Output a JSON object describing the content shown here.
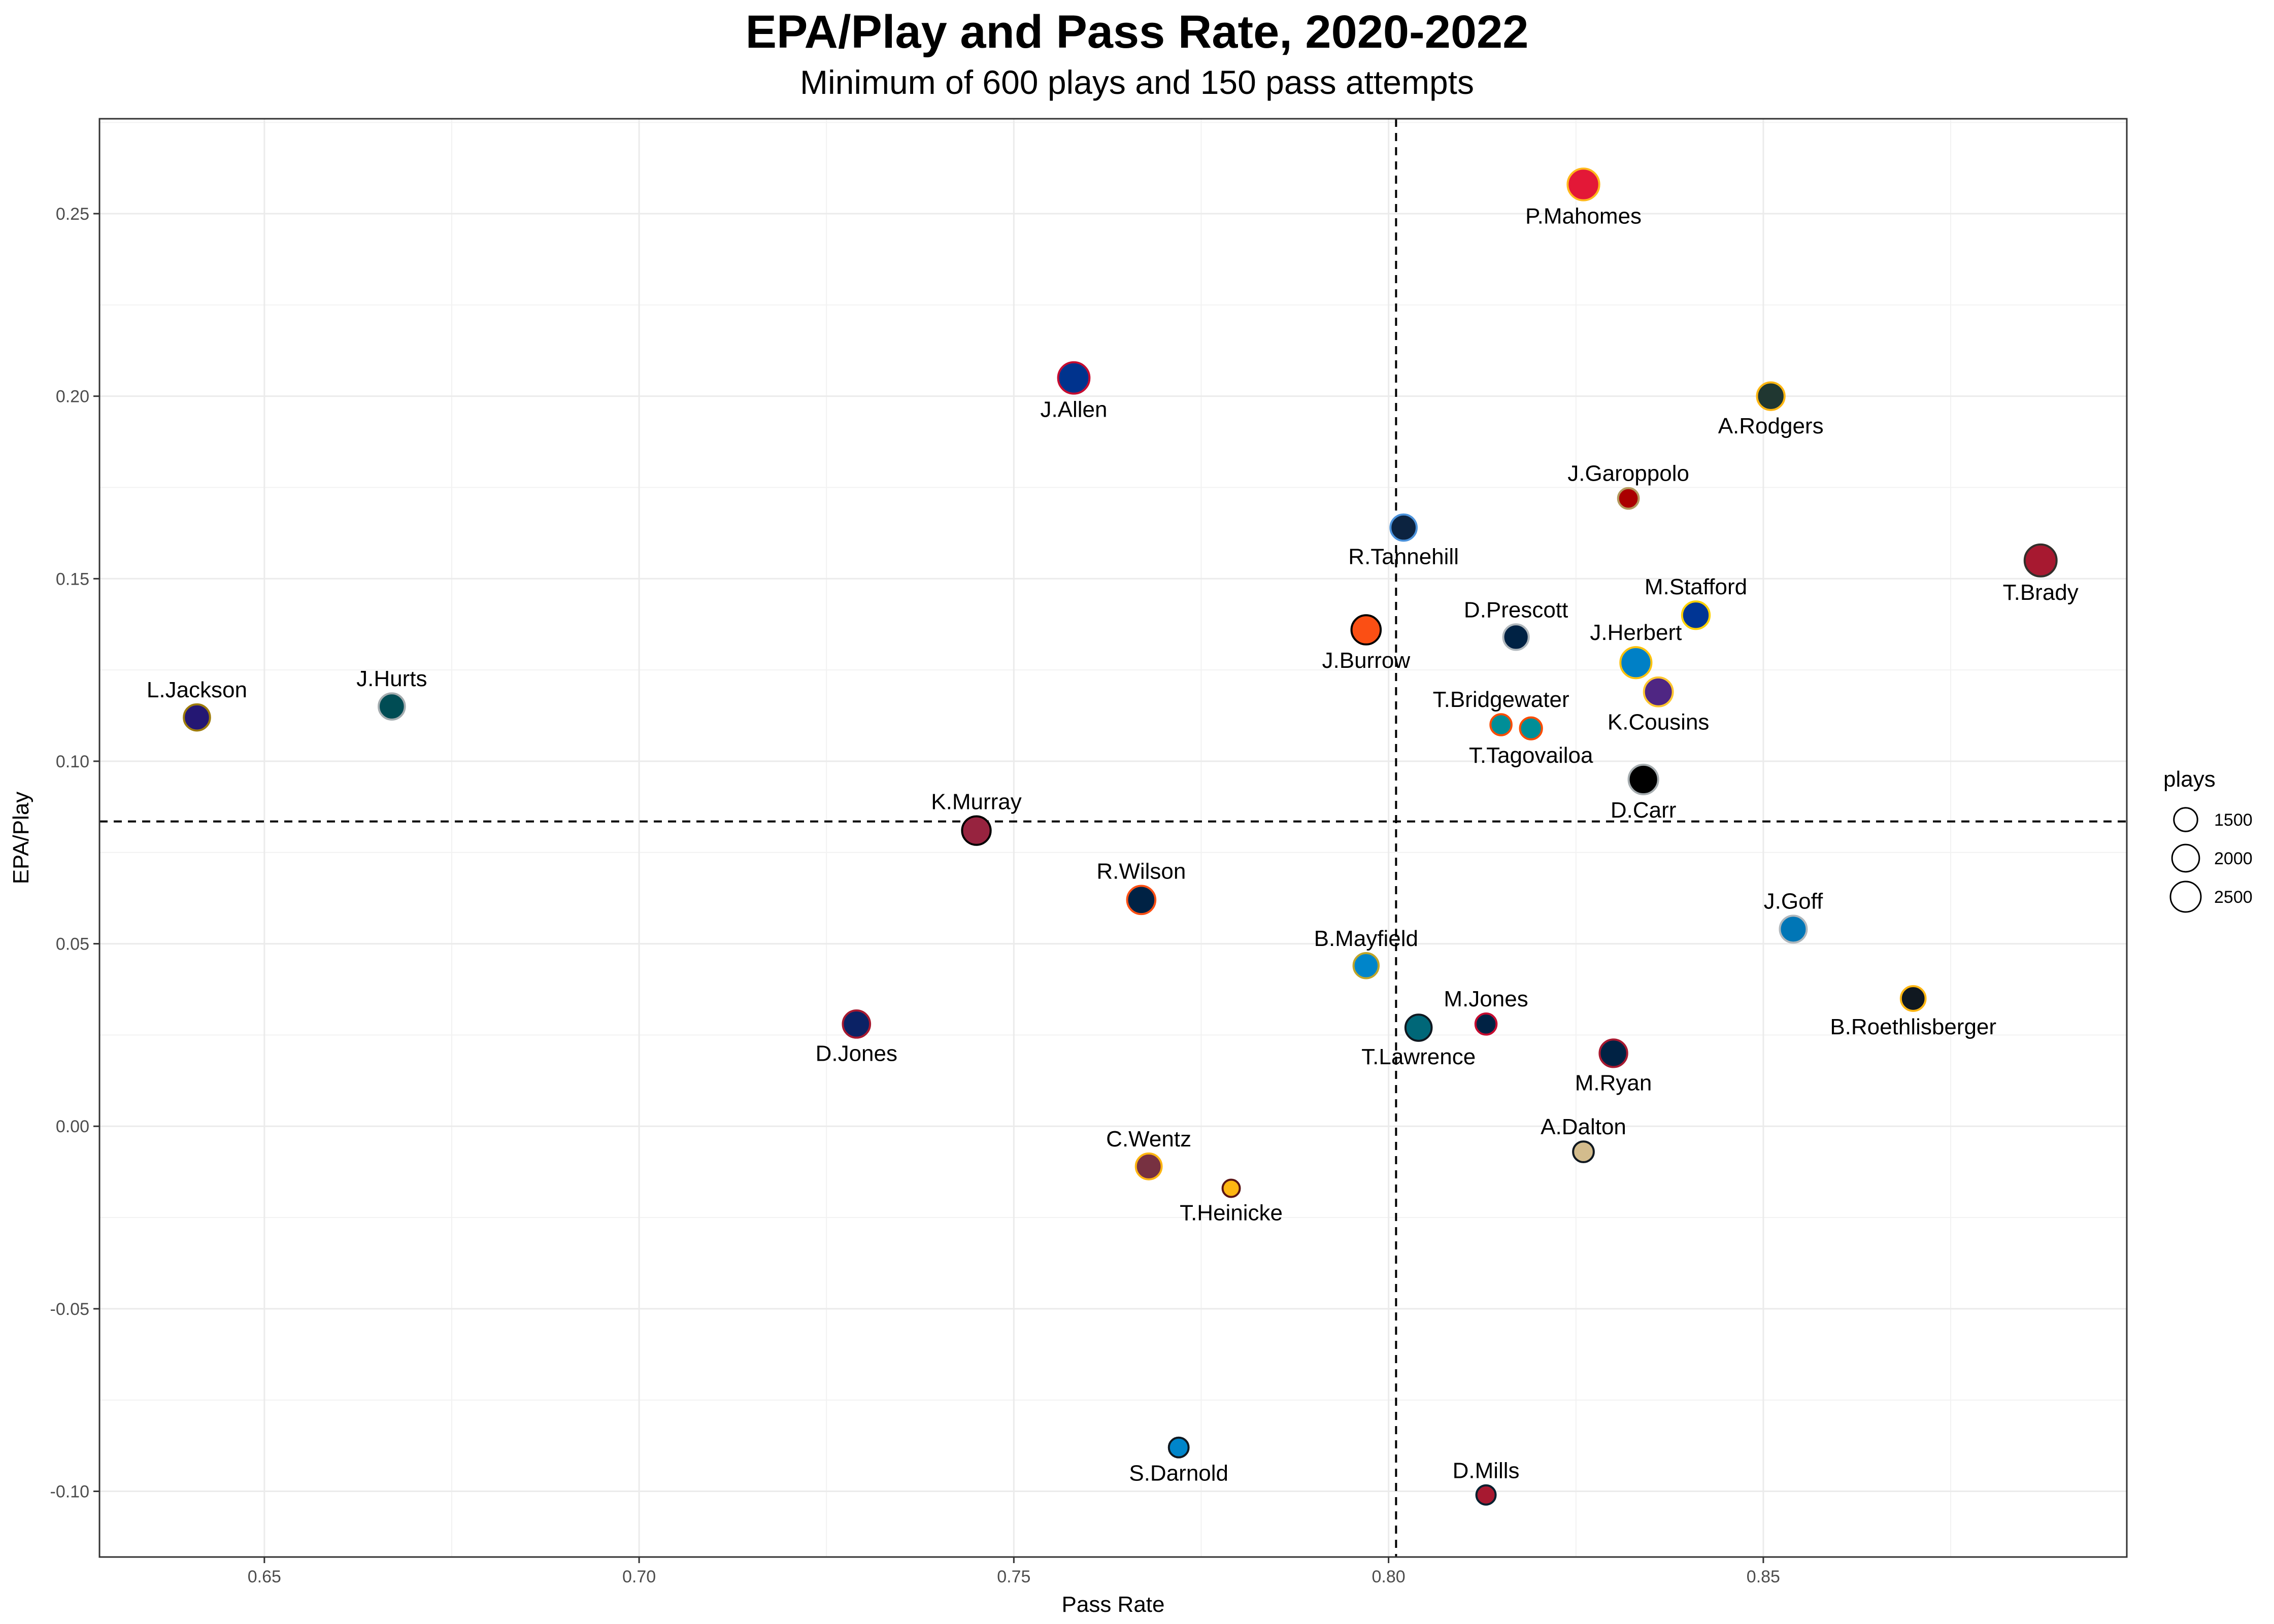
{
  "chart_data": {
    "type": "scatter",
    "title": "EPA/Play and Pass Rate, 2020-2022",
    "subtitle": "Minimum of 600 plays and 150 pass attempts",
    "xlabel": "Pass Rate",
    "ylabel": "EPA/Play",
    "xlim": [
      0.628,
      0.8985
    ],
    "ylim": [
      -0.118,
      0.276
    ],
    "x_ticks": [
      0.65,
      0.7,
      0.75,
      0.8,
      0.85
    ],
    "x_tick_labels": [
      "0.65",
      "0.70",
      "0.75",
      "0.80",
      "0.85"
    ],
    "y_ticks": [
      -0.1,
      -0.05,
      0.0,
      0.05,
      0.1,
      0.15,
      0.2,
      0.25
    ],
    "y_tick_labels": [
      "-0.10",
      "-0.05",
      "0.00",
      "0.05",
      "0.10",
      "0.15",
      "0.20",
      "0.25"
    ],
    "grid": true,
    "reference_lines": {
      "x": 0.801,
      "y": 0.0835
    },
    "legend": {
      "title": "plays",
      "position": "right",
      "sizes": [
        1500,
        2000,
        2500
      ],
      "labels": [
        "1500",
        "2000",
        "2500"
      ]
    },
    "points": [
      {
        "name": "P.Mahomes",
        "x": 0.826,
        "y": 0.258,
        "plays": 2700,
        "fill": "#E31837",
        "stroke": "#FFB81C",
        "label_pos": "below"
      },
      {
        "name": "J.Allen",
        "x": 0.758,
        "y": 0.205,
        "plays": 2650,
        "fill": "#00338D",
        "stroke": "#C60C30",
        "label_pos": "below"
      },
      {
        "name": "A.Rodgers",
        "x": 0.851,
        "y": 0.2,
        "plays": 2050,
        "fill": "#203731",
        "stroke": "#FFB612",
        "label_pos": "below"
      },
      {
        "name": "J.Garoppolo",
        "x": 0.832,
        "y": 0.172,
        "plays": 1150,
        "fill": "#AA0000",
        "stroke": "#B3995D",
        "label_pos": "above"
      },
      {
        "name": "R.Tannehill",
        "x": 0.802,
        "y": 0.164,
        "plays": 1850,
        "fill": "#0C2340",
        "stroke": "#4B92DB",
        "label_pos": "below"
      },
      {
        "name": "T.Brady",
        "x": 0.887,
        "y": 0.155,
        "plays": 2750,
        "fill": "#A71930",
        "stroke": "#322F2B",
        "label_pos": "below"
      },
      {
        "name": "M.Stafford",
        "x": 0.841,
        "y": 0.14,
        "plays": 2050,
        "fill": "#003594",
        "stroke": "#FFD100",
        "label_pos": "above"
      },
      {
        "name": "J.Burrow",
        "x": 0.797,
        "y": 0.136,
        "plays": 2300,
        "fill": "#FB4F14",
        "stroke": "#000000",
        "label_pos": "below"
      },
      {
        "name": "D.Prescott",
        "x": 0.817,
        "y": 0.134,
        "plays": 1750,
        "fill": "#002244",
        "stroke": "#B0B7BC",
        "label_pos": "above"
      },
      {
        "name": "J.Herbert",
        "x": 0.833,
        "y": 0.127,
        "plays": 2600,
        "fill": "#0080C6",
        "stroke": "#FFC20E",
        "label_pos": "above"
      },
      {
        "name": "K.Cousins",
        "x": 0.836,
        "y": 0.119,
        "plays": 2250,
        "fill": "#4F2683",
        "stroke": "#FFC62F",
        "label_pos": "below"
      },
      {
        "name": "L.Jackson",
        "x": 0.641,
        "y": 0.112,
        "plays": 1850,
        "fill": "#241773",
        "stroke": "#9E7C0C",
        "label_pos": "above"
      },
      {
        "name": "J.Hurts",
        "x": 0.667,
        "y": 0.115,
        "plays": 1850,
        "fill": "#004C54",
        "stroke": "#A5ACAF",
        "label_pos": "above"
      },
      {
        "name": "T.Bridgewater",
        "x": 0.815,
        "y": 0.11,
        "plays": 1200,
        "fill": "#008E97",
        "stroke": "#FC4C02",
        "label_pos": "above"
      },
      {
        "name": "T.Tagovailoa",
        "x": 0.819,
        "y": 0.109,
        "plays": 1300,
        "fill": "#008E97",
        "stroke": "#FC4C02",
        "label_pos": "below"
      },
      {
        "name": "D.Carr",
        "x": 0.834,
        "y": 0.095,
        "plays": 2350,
        "fill": "#000000",
        "stroke": "#A5ACAF",
        "label_pos": "below"
      },
      {
        "name": "K.Murray",
        "x": 0.745,
        "y": 0.081,
        "plays": 2200,
        "fill": "#97233F",
        "stroke": "#000000",
        "label_pos": "above"
      },
      {
        "name": "R.Wilson",
        "x": 0.767,
        "y": 0.062,
        "plays": 2150,
        "fill": "#002244",
        "stroke": "#FB4F14",
        "label_pos": "above"
      },
      {
        "name": "J.Goff",
        "x": 0.854,
        "y": 0.054,
        "plays": 1950,
        "fill": "#0076B6",
        "stroke": "#B0B7BC",
        "label_pos": "above"
      },
      {
        "name": "B.Mayfield",
        "x": 0.797,
        "y": 0.044,
        "plays": 1700,
        "fill": "#0085CA",
        "stroke": "#BFA52A",
        "label_pos": "above"
      },
      {
        "name": "B.Roethlisberger",
        "x": 0.87,
        "y": 0.035,
        "plays": 1650,
        "fill": "#101820",
        "stroke": "#FFB612",
        "label_pos": "below"
      },
      {
        "name": "D.Jones",
        "x": 0.729,
        "y": 0.028,
        "plays": 2000,
        "fill": "#0B2265",
        "stroke": "#A71930",
        "label_pos": "below"
      },
      {
        "name": "T.Lawrence",
        "x": 0.804,
        "y": 0.027,
        "plays": 1850,
        "fill": "#006778",
        "stroke": "#101820",
        "label_pos": "below"
      },
      {
        "name": "M.Jones",
        "x": 0.813,
        "y": 0.028,
        "plays": 1200,
        "fill": "#002244",
        "stroke": "#C60C30",
        "label_pos": "above"
      },
      {
        "name": "M.Ryan",
        "x": 0.83,
        "y": 0.02,
        "plays": 2050,
        "fill": "#002244",
        "stroke": "#A71930",
        "label_pos": "below"
      },
      {
        "name": "C.Wentz",
        "x": 0.768,
        "y": -0.011,
        "plays": 1800,
        "fill": "#773141",
        "stroke": "#FFB612",
        "label_pos": "above"
      },
      {
        "name": "A.Dalton",
        "x": 0.826,
        "y": -0.007,
        "plays": 1150,
        "fill": "#D3BC8D",
        "stroke": "#101820",
        "label_pos": "above"
      },
      {
        "name": "T.Heinicke",
        "x": 0.779,
        "y": -0.017,
        "plays": 800,
        "fill": "#FFB612",
        "stroke": "#5A1414",
        "label_pos": "below"
      },
      {
        "name": "S.Darnold",
        "x": 0.772,
        "y": -0.088,
        "plays": 1050,
        "fill": "#0085CA",
        "stroke": "#101820",
        "label_pos": "below"
      },
      {
        "name": "D.Mills",
        "x": 0.813,
        "y": -0.101,
        "plays": 1000,
        "fill": "#A71930",
        "stroke": "#03202F",
        "label_pos": "above"
      }
    ]
  }
}
